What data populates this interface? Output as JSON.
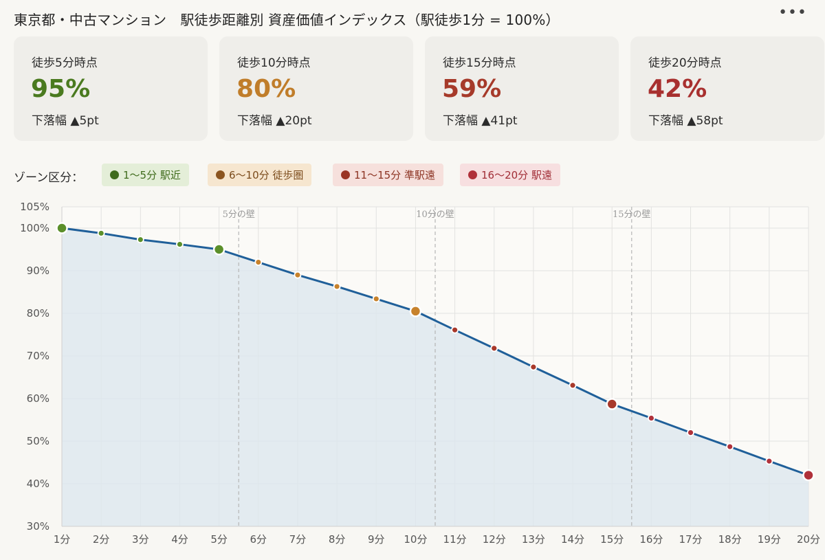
{
  "header": {
    "title": "東京都・中古マンション　駅徒歩距離別 資産価値インデックス（駅徒歩1分 = 100%）",
    "menu_icon": "ellipsis-icon",
    "menu_label": "•••"
  },
  "cards": [
    {
      "label": "徒歩5分時点",
      "value": "95%",
      "drop": "下落幅 ▲5pt",
      "color": "#4a7a1f"
    },
    {
      "label": "徒歩10分時点",
      "value": "80%",
      "drop": "下落幅 ▲20pt",
      "color": "#c07d2a"
    },
    {
      "label": "徒歩15分時点",
      "value": "59%",
      "drop": "下落幅 ▲41pt",
      "color": "#a63a2a"
    },
    {
      "label": "徒歩20分時点",
      "value": "42%",
      "drop": "下落幅 ▲58pt",
      "color": "#a8302f"
    }
  ],
  "legend": {
    "lead": "ゾーン区分：",
    "zones": [
      {
        "label": "1〜5分 駅近",
        "dot": "#3f6b1c",
        "bg": "#e4eed8",
        "text": "#3f6b1c"
      },
      {
        "label": "6〜10分 徒歩圏",
        "dot": "#8c5520",
        "bg": "#f6e6cf",
        "text": "#7a4a1a"
      },
      {
        "label": "11〜15分 準駅遠",
        "dot": "#9a3524",
        "bg": "#f6e0dc",
        "text": "#8c3322"
      },
      {
        "label": "16〜20分 駅遠",
        "dot": "#b0313a",
        "bg": "#f7dfe0",
        "text": "#a12d36"
      }
    ]
  },
  "chart_data": {
    "type": "line",
    "title": "東京都・中古マンション　駅徒歩距離別 資産価値インデックス（駅徒歩1分 = 100%）",
    "xlabel": "",
    "ylabel": "",
    "categories": [
      "1分",
      "2分",
      "3分",
      "4分",
      "5分",
      "6分",
      "7分",
      "8分",
      "9分",
      "10分",
      "11分",
      "12分",
      "13分",
      "14分",
      "15分",
      "16分",
      "17分",
      "18分",
      "19分",
      "20分"
    ],
    "x": [
      1,
      2,
      3,
      4,
      5,
      6,
      7,
      8,
      9,
      10,
      11,
      12,
      13,
      14,
      15,
      16,
      17,
      18,
      19,
      20
    ],
    "series": [
      {
        "name": "資産価値インデックス",
        "values": [
          100,
          98.8,
          97.3,
          96.2,
          95,
          92,
          89,
          86.3,
          83.4,
          80.5,
          76.1,
          71.8,
          67.4,
          63.1,
          58.7,
          55.4,
          52,
          48.7,
          45.3,
          42
        ]
      }
    ],
    "ylim": [
      30,
      105
    ],
    "yticks": [
      30,
      40,
      50,
      60,
      70,
      80,
      90,
      100,
      105
    ],
    "ytick_labels": [
      "30%",
      "40%",
      "50%",
      "60%",
      "70%",
      "80%",
      "90%",
      "100%",
      "105%"
    ],
    "milestones": [
      1,
      5,
      10,
      15,
      20
    ],
    "walls": [
      {
        "x": 5.5,
        "label": "5分の壁"
      },
      {
        "x": 10.5,
        "label": "10分の壁"
      },
      {
        "x": 15.5,
        "label": "15分の壁"
      }
    ],
    "zone_colors": {
      "1-5": "#5b8f2a",
      "6-10": "#c7822c",
      "11-15": "#a8392b",
      "16-20": "#b0313a"
    },
    "line_color": "#1f5f99",
    "fill_color": "#dde7ee",
    "grid": true
  }
}
